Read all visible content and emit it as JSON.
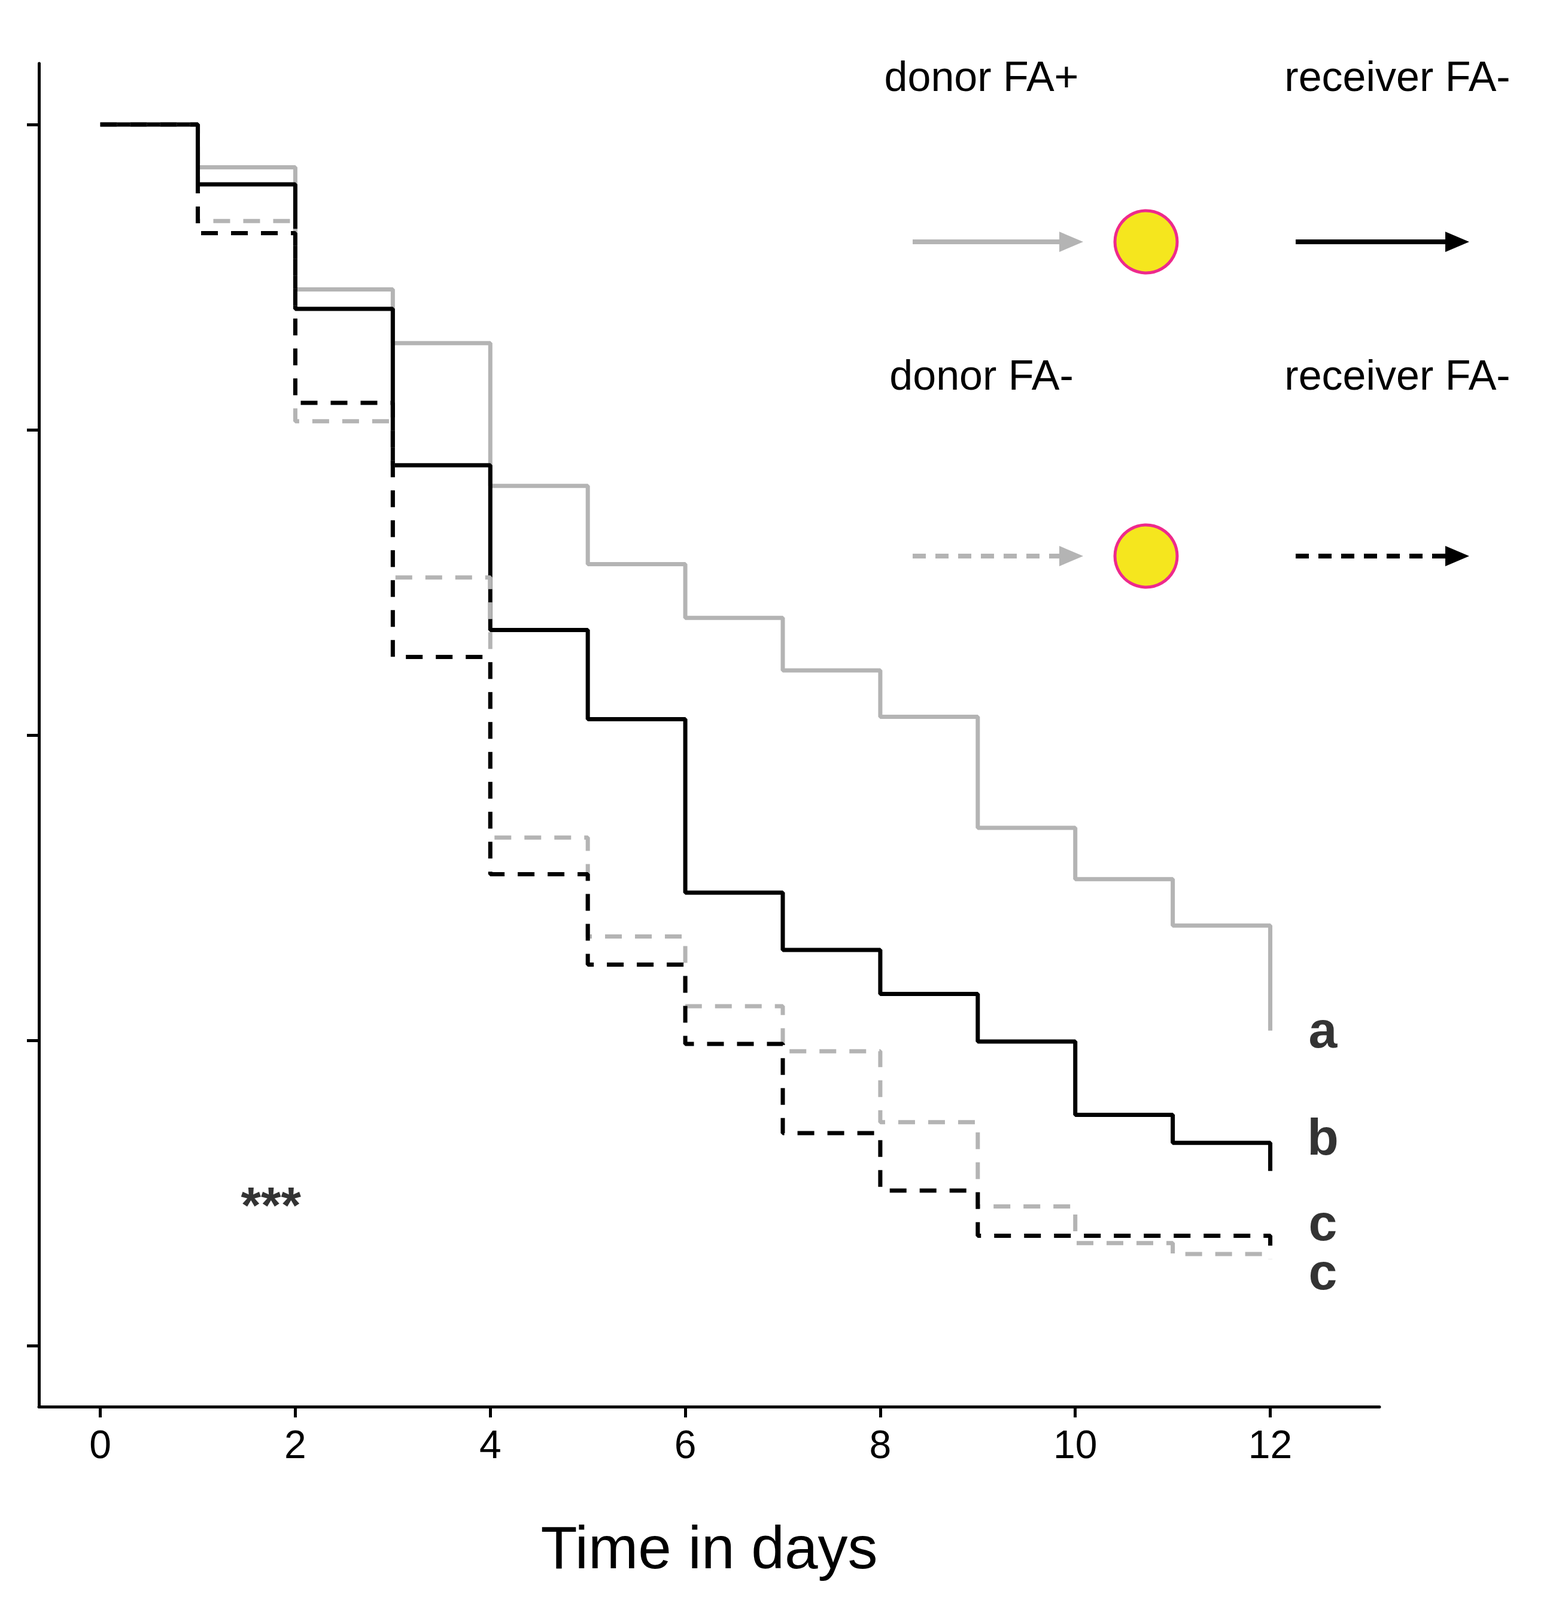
{
  "chart_data": {
    "type": "step",
    "x_label": "Time in days",
    "x": [
      0,
      1,
      2,
      3,
      4,
      5,
      6,
      7,
      8,
      9,
      10,
      11,
      12
    ],
    "series": [
      {
        "name": "donor FA+",
        "color": "#b4b4b4",
        "line_style": "solid",
        "values": [
          1.0,
          0.965,
          0.865,
          0.821,
          0.704,
          0.64,
          0.596,
          0.553,
          0.515,
          0.424,
          0.382,
          0.344,
          0.258
        ]
      },
      {
        "name": "receiver FA-",
        "color": "#000000",
        "line_style": "solid",
        "values": [
          1.0,
          0.951,
          0.849,
          0.721,
          0.586,
          0.513,
          0.371,
          0.324,
          0.288,
          0.249,
          0.189,
          0.166,
          0.143
        ]
      },
      {
        "name": "donor FA-",
        "color": "#b4b4b4",
        "line_style": "dashed",
        "values": [
          1.0,
          0.921,
          0.757,
          0.629,
          0.416,
          0.335,
          0.278,
          0.241,
          0.183,
          0.114,
          0.084,
          0.075,
          0.071
        ]
      },
      {
        "name": "receiver FA-",
        "color": "#000000",
        "line_style": "dashed",
        "values": [
          1.0,
          0.911,
          0.772,
          0.564,
          0.386,
          0.312,
          0.247,
          0.174,
          0.127,
          0.09,
          0.09,
          0.09,
          0.081
        ]
      }
    ],
    "xlim": [
      -0.63,
      13.12
    ],
    "xticks": [
      0,
      2,
      4,
      6,
      8,
      10,
      12
    ],
    "ylim": [
      -0.05,
      1.05
    ],
    "yticks": [
      0,
      0.25,
      0.5,
      0.75,
      1
    ],
    "tick_labels": "x",
    "legend": "upper right",
    "annotations": [
      {
        "text": "a",
        "x": 12.54,
        "y": 0.259
      },
      {
        "text": "b",
        "x": 12.54,
        "y": 0.171
      },
      {
        "text": "c",
        "x": 12.54,
        "y": 0.101
      },
      {
        "text": "c",
        "x": 12.54,
        "y": 0.061
      },
      {
        "text": "***",
        "x": 1.75,
        "y": 0.115
      }
    ]
  }
}
